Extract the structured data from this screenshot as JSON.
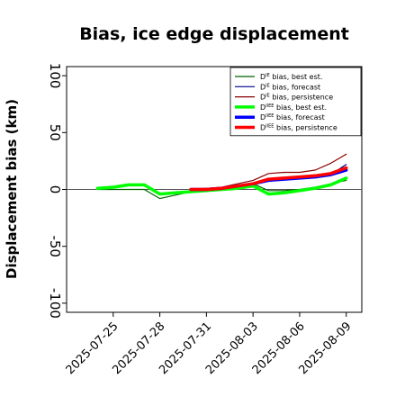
{
  "chart_data": {
    "type": "line",
    "title": "Bias, ice edge displacement",
    "ylabel": "Displacement bias (km)",
    "ylim": [
      -108,
      108
    ],
    "xlim": [
      "2025-07-22",
      "2025-08-10"
    ],
    "yticks": [
      100,
      50,
      0,
      -50,
      -100
    ],
    "xticks": [
      {
        "date": "2025-07-25",
        "label": "2025-07-25",
        "color": "#000000"
      },
      {
        "date": "2025-07-28",
        "label": "2025-07-28",
        "color": "#000000"
      },
      {
        "date": "2025-07-31",
        "label": "2025-07-31",
        "color": "#228B22"
      },
      {
        "date": "2025-08-03",
        "label": "2025-08-03",
        "color": "#000000"
      },
      {
        "date": "2025-08-06",
        "label": "2025-08-06",
        "color": "#000000"
      },
      {
        "date": "2025-08-09",
        "label": "2025-08-09",
        "color": "#000000"
      }
    ],
    "zero_line": true,
    "grid": false,
    "legend_position": "top-right",
    "series": [
      {
        "name": "D^IE bias, best est.",
        "sup": "IE",
        "label_rest": " bias, best est.",
        "color": "#006400",
        "width": 1.2,
        "x": [
          "2025-07-24",
          "2025-07-25",
          "2025-07-26",
          "2025-07-27",
          "2025-07-28",
          "2025-07-29",
          "2025-07-30",
          "2025-07-31",
          "2025-08-01",
          "2025-08-02",
          "2025-08-03",
          "2025-08-04",
          "2025-08-05",
          "2025-08-06",
          "2025-08-07",
          "2025-08-08",
          "2025-08-09"
        ],
        "y": [
          0,
          0,
          0,
          0,
          -8,
          -5,
          -2,
          -1,
          1,
          3,
          5,
          -1,
          -1,
          0,
          2,
          5,
          8
        ]
      },
      {
        "name": "D^IE bias, forecast",
        "sup": "IE",
        "label_rest": " bias, forecast",
        "color": "#00008B",
        "width": 1.2,
        "x": [
          "2025-07-30",
          "2025-07-31",
          "2025-08-01",
          "2025-08-02",
          "2025-08-03",
          "2025-08-04",
          "2025-08-05",
          "2025-08-06",
          "2025-08-07",
          "2025-08-08",
          "2025-08-09"
        ],
        "y": [
          0,
          -1,
          1,
          2,
          4,
          8,
          9,
          10,
          11,
          13,
          22
        ]
      },
      {
        "name": "D^IE bias, persistence",
        "sup": "IE",
        "label_rest": " bias, persistence",
        "color": "#8B0000",
        "width": 1.2,
        "x": [
          "2025-07-30",
          "2025-07-31",
          "2025-08-01",
          "2025-08-02",
          "2025-08-03",
          "2025-08-04",
          "2025-08-05",
          "2025-08-06",
          "2025-08-07",
          "2025-08-08",
          "2025-08-09"
        ],
        "y": [
          0,
          1,
          2,
          5,
          8,
          14,
          15,
          15,
          17,
          23,
          31
        ]
      },
      {
        "name": "D^IIEE bias, best est.",
        "sup": "IIEE",
        "label_rest": " bias, best est.",
        "color": "#00FF00",
        "width": 3.5,
        "x": [
          "2025-07-24",
          "2025-07-25",
          "2025-07-26",
          "2025-07-27",
          "2025-07-28",
          "2025-07-29",
          "2025-07-30",
          "2025-07-31",
          "2025-08-01",
          "2025-08-02",
          "2025-08-03",
          "2025-08-04",
          "2025-08-05",
          "2025-08-06",
          "2025-08-07",
          "2025-08-08",
          "2025-08-09"
        ],
        "y": [
          1,
          2,
          4,
          4,
          -4,
          -3,
          -2,
          -1,
          0,
          1,
          3,
          -4,
          -3,
          -1,
          1,
          4,
          10
        ]
      },
      {
        "name": "D^IIEE bias, forecast",
        "sup": "IIEE",
        "label_rest": " bias, forecast",
        "color": "#0000FF",
        "width": 3.5,
        "x": [
          "2025-07-30",
          "2025-07-31",
          "2025-08-01",
          "2025-08-02",
          "2025-08-03",
          "2025-08-04",
          "2025-08-05",
          "2025-08-06",
          "2025-08-07",
          "2025-08-08",
          "2025-08-09"
        ],
        "y": [
          0,
          0,
          1,
          3,
          5,
          8,
          9,
          10,
          11,
          13,
          17
        ]
      },
      {
        "name": "D^IIEE bias, persistence",
        "sup": "IIEE",
        "label_rest": " bias, persistence",
        "color": "#FF0000",
        "width": 3.5,
        "x": [
          "2025-07-30",
          "2025-07-31",
          "2025-08-01",
          "2025-08-02",
          "2025-08-03",
          "2025-08-04",
          "2025-08-05",
          "2025-08-06",
          "2025-08-07",
          "2025-08-08",
          "2025-08-09"
        ],
        "y": [
          0,
          0,
          1,
          3,
          5,
          9,
          10,
          11,
          12,
          14,
          19
        ]
      }
    ]
  }
}
